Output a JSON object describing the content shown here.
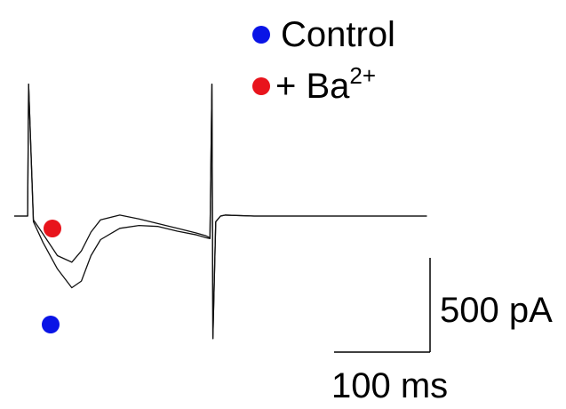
{
  "legend": {
    "items": [
      {
        "label": "Control",
        "color": "#0a14e6"
      },
      {
        "label": "+ Ba",
        "sup": "2+",
        "color": "#e8141c"
      }
    ]
  },
  "scalebar": {
    "vertical_label": "500 pA",
    "horizontal_label": "100 ms"
  },
  "chart_data": {
    "type": "line",
    "title": "",
    "xlabel": "",
    "ylabel": "",
    "grid": false,
    "axes_shown": false,
    "legend_position": "top-right",
    "scale_bars": [
      {
        "axis": "y",
        "value": 500,
        "unit": "pA",
        "label": "500 pA"
      },
      {
        "axis": "x",
        "value": 100,
        "unit": "ms",
        "label": "100 ms"
      }
    ],
    "x_unit": "ms",
    "y_unit": "pA",
    "series": [
      {
        "name": "Control",
        "color": "#0a14e6",
        "x": [
          0,
          10,
          14,
          15,
          20,
          30,
          45,
          60,
          70,
          80,
          90,
          110,
          130,
          150,
          170,
          190,
          200,
          204,
          206,
          207,
          210,
          215,
          220,
          250,
          300,
          350,
          400,
          430
        ],
        "y": [
          0,
          0,
          0,
          1400,
          -60,
          -280,
          -560,
          -760,
          -690,
          -420,
          -250,
          -130,
          -100,
          -110,
          -160,
          -200,
          -230,
          -240,
          1400,
          -1300,
          -60,
          0,
          10,
          0,
          0,
          0,
          0,
          0
        ]
      },
      {
        "name": "+ Ba2+",
        "color": "#e8141c",
        "x": [
          0,
          10,
          14,
          15,
          20,
          30,
          45,
          60,
          70,
          80,
          90,
          110,
          130,
          150,
          170,
          190,
          200,
          204,
          206,
          207,
          210,
          215,
          220,
          250,
          300,
          350,
          400,
          430
        ],
        "y": [
          0,
          0,
          0,
          1400,
          -40,
          -190,
          -420,
          -490,
          -370,
          -170,
          -40,
          10,
          -30,
          -80,
          -130,
          -180,
          -210,
          -230,
          1400,
          -1300,
          -60,
          0,
          10,
          0,
          0,
          0,
          0,
          0
        ]
      }
    ]
  }
}
